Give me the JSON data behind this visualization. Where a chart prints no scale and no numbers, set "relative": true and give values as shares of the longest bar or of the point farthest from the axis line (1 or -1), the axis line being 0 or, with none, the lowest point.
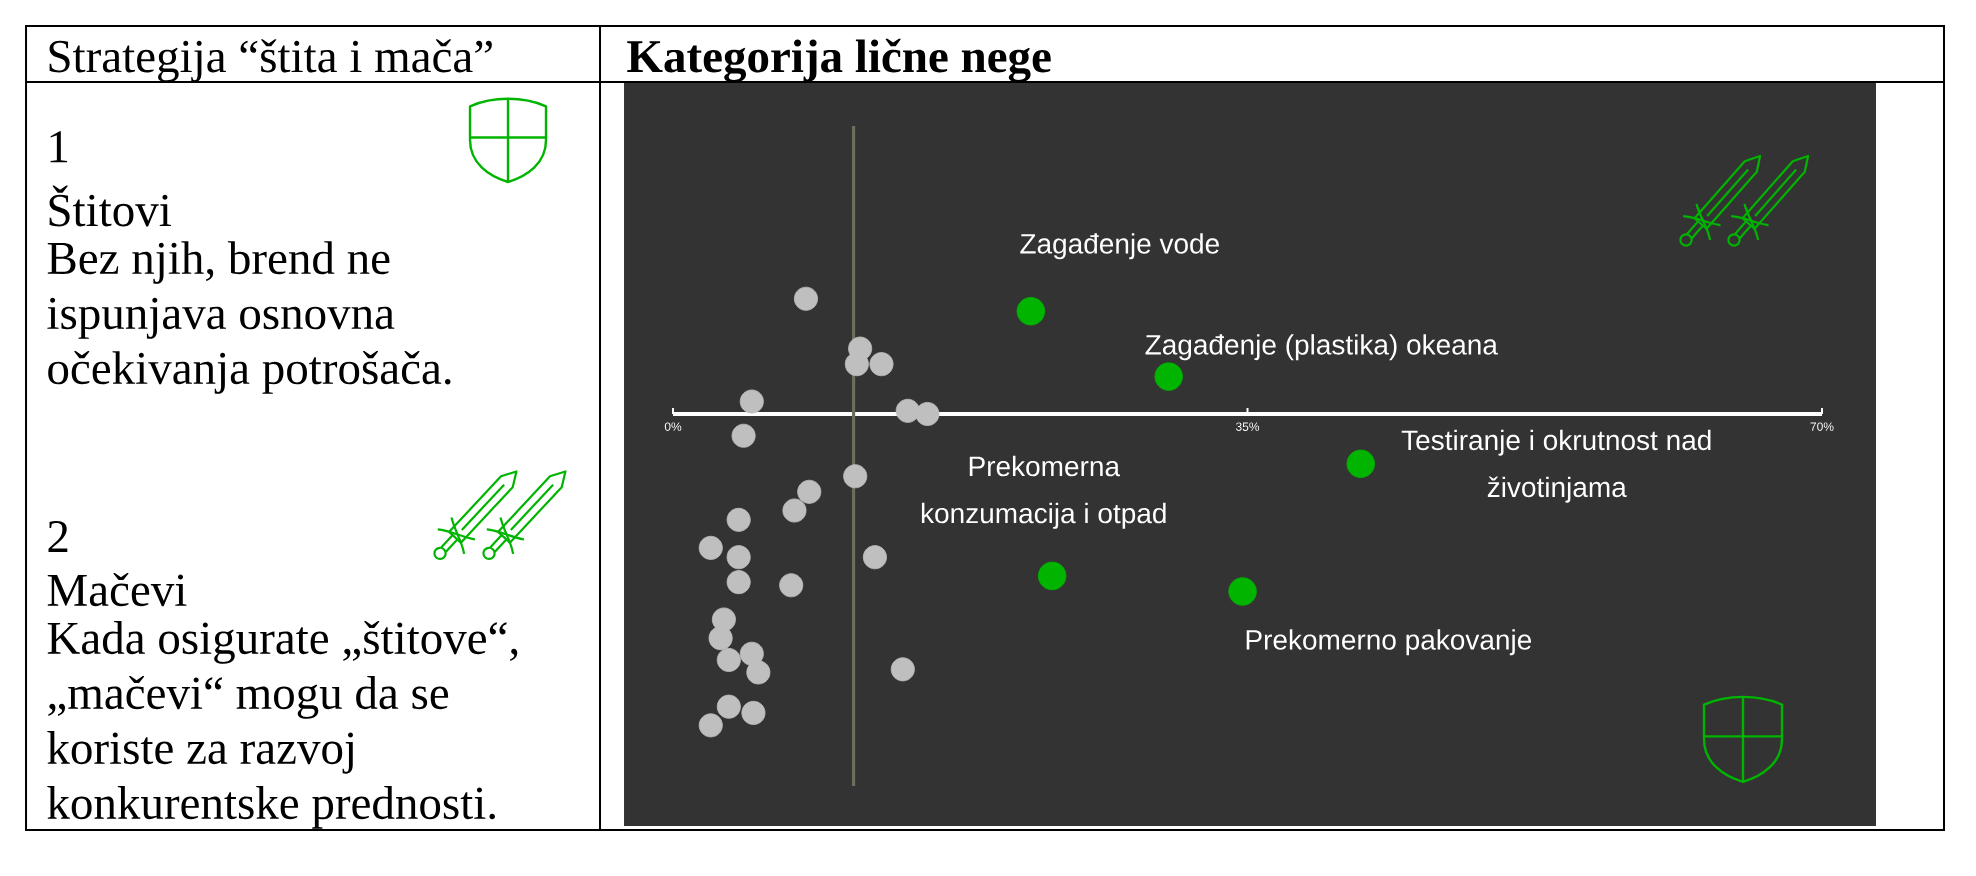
{
  "chart_data": [
    {
      "type": "other",
      "title": "Strategija “štita i mača”",
      "annotations": [
        "1",
        "Štitovi",
        "Bez njih, brend ne ispunjava osnovna očekivanja potrošača.",
        "2",
        "Mačevi",
        "Kada osigurate „štitove“, „mačevi“ mogu da se koriste za razvoj konkurentske prednosti."
      ]
    },
    {
      "type": "scatter",
      "title": "Kategorija lične nege",
      "relative": true,
      "xlim": [
        0,
        70
      ],
      "xticks": [
        {
          "value": 0,
          "label": "0%"
        },
        {
          "value": 35,
          "label": "35%"
        },
        {
          "value": 70,
          "label": "70%"
        }
      ],
      "ref_lines": [
        {
          "axis": "x",
          "value": 11,
          "color": "#6e6c5c"
        }
      ],
      "series": [
        {
          "color": "#bfbfbf",
          "x": [
            8.1,
            11.4,
            11.2,
            12.7,
            4.8,
            14.3,
            15.5,
            4.3,
            11.1,
            8.3,
            7.4,
            4.0,
            2.3,
            4.0,
            12.3,
            4.0,
            7.2,
            3.1,
            2.9,
            3.4,
            4.8,
            5.2,
            14.0,
            3.4,
            4.9,
            2.3
          ],
          "values": [
            0.37,
            0.21,
            0.16,
            0.16,
            0.04,
            0.01,
            0.0,
            -0.07,
            -0.2,
            -0.25,
            -0.31,
            -0.34,
            -0.43,
            -0.46,
            -0.46,
            -0.54,
            -0.55,
            -0.66,
            -0.72,
            -0.79,
            -0.77,
            -0.83,
            -0.82,
            -0.94,
            -0.96,
            -1.0
          ]
        },
        {
          "color": "#00b400",
          "x": [
            21.8,
            30.2,
            41.9,
            23.1,
            34.7
          ],
          "values": [
            0.33,
            0.12,
            -0.16,
            -0.52,
            -0.57
          ]
        }
      ],
      "annotations": [
        {
          "text": "Zagađenje vode",
          "x": 21.8,
          "y": 0.33
        },
        {
          "text": "Zagađenje (plastika) okeana",
          "x": 30.2,
          "y": 0.12
        },
        {
          "text": "Testiranje i okrutnost nad životinjama",
          "x": 41.9,
          "y": -0.16
        },
        {
          "text": "Prekomerna konzumacija i otpad",
          "x": 23.1,
          "y": -0.52
        },
        {
          "text": "Prekomerno pakovanje",
          "x": 34.7,
          "y": -0.57
        }
      ]
    }
  ]
}
